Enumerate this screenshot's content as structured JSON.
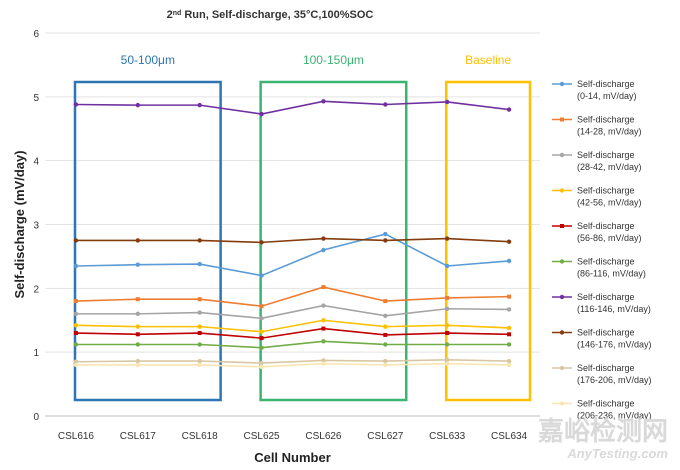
{
  "chart_data": {
    "type": "line",
    "title_parts": [
      "2",
      "nd",
      " Run, Self-discharge, 35°C,100%SOC"
    ],
    "xlabel": "Cell Number",
    "ylabel": "Self-discharge (mV/day)",
    "ylim": [
      0,
      6
    ],
    "yticks": [
      "0",
      "1",
      "2",
      "3",
      "4",
      "5",
      "6"
    ],
    "grid": true,
    "legend_position": "right",
    "categories": [
      "CSL616",
      "CSL617",
      "CSL618",
      "CSL625",
      "CSL626",
      "CSL627",
      "CSL633",
      "CSL634"
    ],
    "series": [
      {
        "name": "Self-discharge (0-14, mV/day)",
        "name_lines": [
          "Self-discharge",
          "(0-14, mV/day)"
        ],
        "color": "#5b9bd5",
        "marker": "circle",
        "values": [
          2.35,
          2.37,
          2.38,
          2.2,
          2.6,
          2.85,
          2.35,
          2.43
        ]
      },
      {
        "name": "Self-discharge (14-28, mV/day)",
        "name_lines": [
          "Self-discharge",
          "(14-28, mV/day)"
        ],
        "color": "#ed7d31",
        "marker": "square",
        "values": [
          1.8,
          1.83,
          1.83,
          1.72,
          2.02,
          1.8,
          1.85,
          1.87
        ]
      },
      {
        "name": "Self-discharge (28-42, mV/day)",
        "name_lines": [
          "Self-discharge",
          "(28-42, mV/day)"
        ],
        "color": "#a5a5a5",
        "marker": "circle",
        "values": [
          1.6,
          1.6,
          1.62,
          1.53,
          1.73,
          1.57,
          1.68,
          1.67
        ]
      },
      {
        "name": "Self-discharge (42-56, mV/day)",
        "name_lines": [
          "Self-discharge",
          "(42-56, mV/day)"
        ],
        "color": "#ffc000",
        "marker": "circle",
        "values": [
          1.42,
          1.4,
          1.4,
          1.32,
          1.5,
          1.4,
          1.42,
          1.38
        ]
      },
      {
        "name": "Self-discharge (56-86, mV/day)",
        "name_lines": [
          "Self-discharge",
          "(56-86, mV/day)"
        ],
        "color": "#c00000",
        "marker": "square",
        "values": [
          1.3,
          1.28,
          1.3,
          1.22,
          1.37,
          1.27,
          1.3,
          1.28
        ]
      },
      {
        "name": "Self-discharge (86-116, mV/day)",
        "name_lines": [
          "Self-discharge",
          "(86-116, mV/day)"
        ],
        "color": "#70ad47",
        "marker": "circle",
        "values": [
          1.12,
          1.12,
          1.12,
          1.07,
          1.17,
          1.12,
          1.12,
          1.12
        ]
      },
      {
        "name": "Self-discharge (116-146, mV/day)",
        "name_lines": [
          "Self-discharge",
          "(116-146, mV/day)"
        ],
        "color": "#7030a0",
        "marker": "circle",
        "values": [
          4.88,
          4.87,
          4.87,
          4.73,
          4.93,
          4.88,
          4.92,
          4.8
        ]
      },
      {
        "name": "Self-discharge (146-176, mV/day)",
        "name_lines": [
          "Self-discharge",
          "(146-176, mV/day)"
        ],
        "color": "#843c0c",
        "marker": "circle",
        "values": [
          2.75,
          2.75,
          2.75,
          2.72,
          2.78,
          2.75,
          2.78,
          2.73
        ]
      },
      {
        "name": "Self-discharge (176-206, mV/day)",
        "name_lines": [
          "Self-discharge",
          "(176-206, mV/day)"
        ],
        "color": "#d9c7a3",
        "marker": "circle",
        "values": [
          0.85,
          0.86,
          0.86,
          0.83,
          0.87,
          0.86,
          0.88,
          0.86
        ]
      },
      {
        "name": "Self-discharge (206-236, mV/day)",
        "name_lines": [
          "Self-discharge",
          "(206-236, mV/day)"
        ],
        "color": "#f8e6b0",
        "marker": "circle",
        "values": [
          0.8,
          0.8,
          0.8,
          0.77,
          0.82,
          0.8,
          0.82,
          0.8
        ]
      }
    ],
    "groups": [
      {
        "label": "50-100μm",
        "color": "#2e75b6",
        "from": 0,
        "to": 2
      },
      {
        "label": "100-150μm",
        "color": "#3cb371",
        "from": 3,
        "to": 5
      },
      {
        "label": "Baseline",
        "color": "#ffc000",
        "from": 6,
        "to": 7
      }
    ]
  },
  "watermark": {
    "cn": "嘉峪检测网",
    "en": "AnyTesting.com"
  }
}
